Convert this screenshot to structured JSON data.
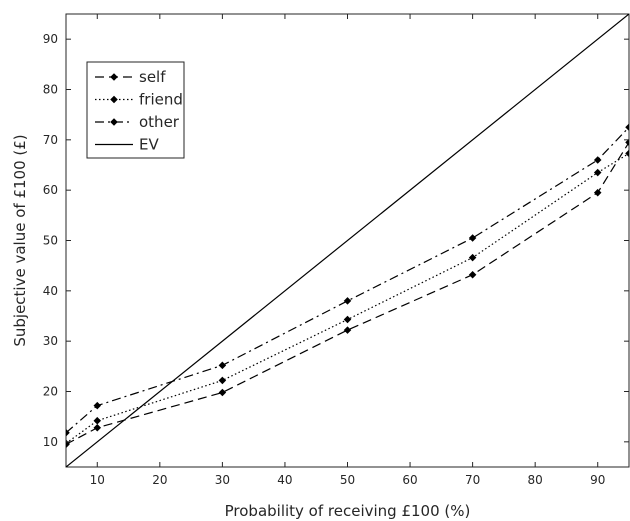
{
  "chart_data": {
    "type": "line",
    "title": "",
    "xlabel": "Probability of receiving £100 (%)",
    "ylabel": "Subjective value of £100 (£)",
    "xlim": [
      5,
      95
    ],
    "ylim": [
      5,
      95
    ],
    "xticks": [
      "10",
      "20",
      "30",
      "40",
      "50",
      "60",
      "70",
      "80",
      "90"
    ],
    "yticks": [
      "10",
      "20",
      "30",
      "40",
      "50",
      "60",
      "70",
      "80",
      "90"
    ],
    "grid": false,
    "legend_position": "top-left",
    "series": [
      {
        "name": "self",
        "style": "dashed",
        "marker": "diamond",
        "x": [
          5,
          10,
          30,
          50,
          70,
          90,
          95
        ],
        "y": [
          9.5,
          12.8,
          19.8,
          32.2,
          43.2,
          59.5,
          69.5
        ]
      },
      {
        "name": "friend",
        "style": "dotted",
        "marker": "diamond",
        "x": [
          5,
          10,
          30,
          50,
          70,
          90,
          95
        ],
        "y": [
          9.7,
          14.2,
          22.2,
          34.3,
          46.6,
          63.5,
          67.3
        ]
      },
      {
        "name": "other",
        "style": "dashdot",
        "marker": "diamond",
        "x": [
          5,
          10,
          30,
          50,
          70,
          90,
          95
        ],
        "y": [
          11.8,
          17.2,
          25.2,
          38.0,
          50.5,
          66.0,
          72.5
        ]
      },
      {
        "name": "EV",
        "style": "solid",
        "marker": "none",
        "x": [
          5,
          95
        ],
        "y": [
          5,
          95
        ]
      }
    ]
  }
}
